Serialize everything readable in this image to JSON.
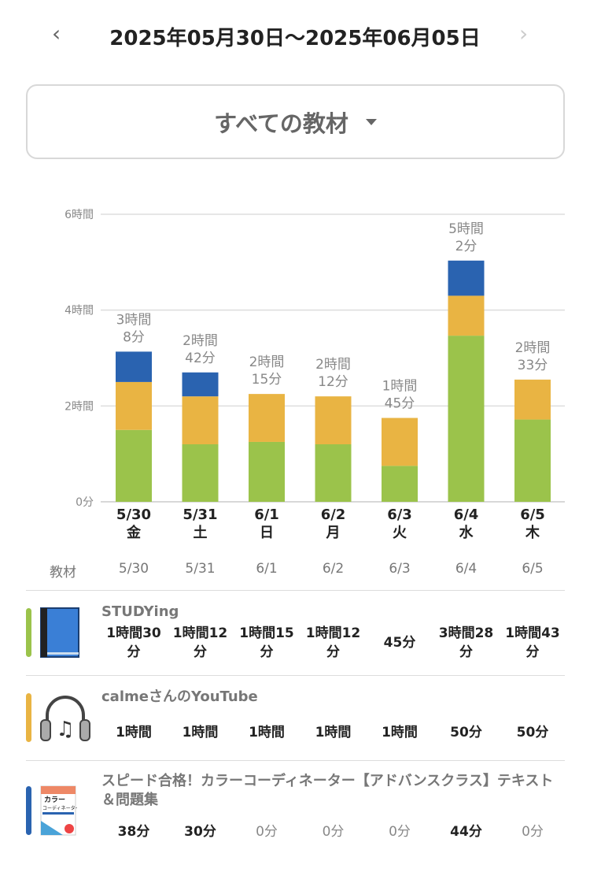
{
  "header": {
    "title": "2025年05月30日〜2025年06月05日",
    "prev_icon": "chevron-left",
    "next_icon": "chevron-right"
  },
  "filter": {
    "label": "すべての教材"
  },
  "colors": {
    "studying": "#9bc34b",
    "youtube": "#e9b443",
    "textbook": "#2a63b0"
  },
  "chart_data": {
    "type": "bar",
    "stacked": true,
    "categories": [
      "5/30",
      "5/31",
      "6/1",
      "6/2",
      "6/3",
      "6/4",
      "6/5"
    ],
    "weekdays": [
      "金",
      "土",
      "日",
      "月",
      "火",
      "水",
      "木"
    ],
    "yticks": [
      {
        "v": 0,
        "label": "0分"
      },
      {
        "v": 120,
        "label": "2時間"
      },
      {
        "v": 240,
        "label": "4時間"
      },
      {
        "v": 360,
        "label": "6時間"
      }
    ],
    "ylim": [
      0,
      360
    ],
    "yunit": "minutes",
    "series": [
      {
        "name": "STUDYing",
        "color": "#9bc34b",
        "values": [
          90,
          72,
          75,
          72,
          45,
          208,
          103
        ]
      },
      {
        "name": "calmeさんのYouTube",
        "color": "#e9b443",
        "values": [
          60,
          60,
          60,
          60,
          60,
          50,
          50
        ]
      },
      {
        "name": "スピード合格！カラーコーディネーター【アドバンスクラス】テキスト＆問題集",
        "color": "#2a63b0",
        "values": [
          38,
          30,
          0,
          0,
          0,
          44,
          0
        ]
      }
    ],
    "total_labels": [
      [
        "3時間",
        "8分"
      ],
      [
        "2時間",
        "42分"
      ],
      [
        "2時間",
        "15分"
      ],
      [
        "2時間",
        "12分"
      ],
      [
        "1時間",
        "45分"
      ],
      [
        "5時間",
        "2分"
      ],
      [
        "2時間",
        "33分"
      ]
    ]
  },
  "table": {
    "header": "教材",
    "dates": [
      "5/30",
      "5/31",
      "6/1",
      "6/2",
      "6/3",
      "6/4",
      "6/5"
    ],
    "items": [
      {
        "name": "STUDYing",
        "icon": "book-icon",
        "values": [
          "1時間30分",
          "1時間12分",
          "1時間15分",
          "1時間12分",
          "45分",
          "3時間28分",
          "1時間43分"
        ]
      },
      {
        "name": "calmeさんのYouTube",
        "icon": "headphones-icon",
        "values": [
          "1時間",
          "1時間",
          "1時間",
          "1時間",
          "1時間",
          "50分",
          "50分"
        ]
      },
      {
        "name": "スピード合格！カラーコーディネーター【アドバンスクラス】テキスト＆問題集",
        "icon": "book-cover-icon",
        "values": [
          "38分",
          "30分",
          "0分",
          "0分",
          "0分",
          "44分",
          "0分"
        ]
      }
    ]
  }
}
